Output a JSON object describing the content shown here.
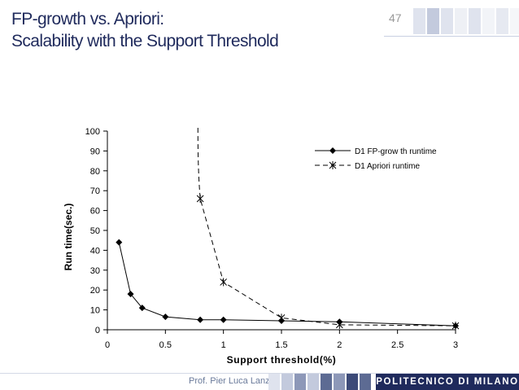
{
  "slide": {
    "title_line1": "FP-growth vs. Apriori:",
    "title_line2": "Scalability with the Support Threshold",
    "number": "47",
    "footer_author": "Prof. Pier Luca Lanzi",
    "footer_brand": "POLITECNICO DI MILANO",
    "colors": {
      "title": "#1f2a5c",
      "brand": "#1f2a5c"
    }
  },
  "chart_data": {
    "type": "line",
    "title": "",
    "xlabel": "Support threshold(%)",
    "ylabel": "Run time(sec.)",
    "xlim": [
      0,
      3
    ],
    "ylim": [
      0,
      100
    ],
    "x_ticks": [
      0,
      0.5,
      1,
      1.5,
      2,
      2.5,
      3
    ],
    "x_tick_labels": [
      "0",
      "0.5",
      "1",
      "1.5",
      "2",
      "2.5",
      "3"
    ],
    "y_ticks": [
      0,
      10,
      20,
      30,
      40,
      50,
      60,
      70,
      80,
      90,
      100
    ],
    "y_tick_labels": [
      "0",
      "10",
      "20",
      "30",
      "40",
      "50",
      "60",
      "70",
      "80",
      "90",
      "100"
    ],
    "grid": false,
    "legend_position": "top-right",
    "series": [
      {
        "name": "D1 FP-grow th runtime",
        "style": "solid",
        "marker": "diamond",
        "color": "#000000",
        "x": [
          0.1,
          0.2,
          0.3,
          0.5,
          0.8,
          1.0,
          1.5,
          2.0,
          3.0
        ],
        "y": [
          44,
          18,
          11,
          6.5,
          5,
          5,
          4.5,
          4,
          2
        ]
      },
      {
        "name": "D1 Apriori runtime",
        "style": "dashed",
        "marker": "star",
        "color": "#000000",
        "x": [
          0.8,
          1.0,
          1.5,
          2.0,
          3.0
        ],
        "y": [
          66,
          24,
          6,
          2.5,
          2
        ],
        "extends_above_top_at_x": 0.78
      }
    ]
  }
}
